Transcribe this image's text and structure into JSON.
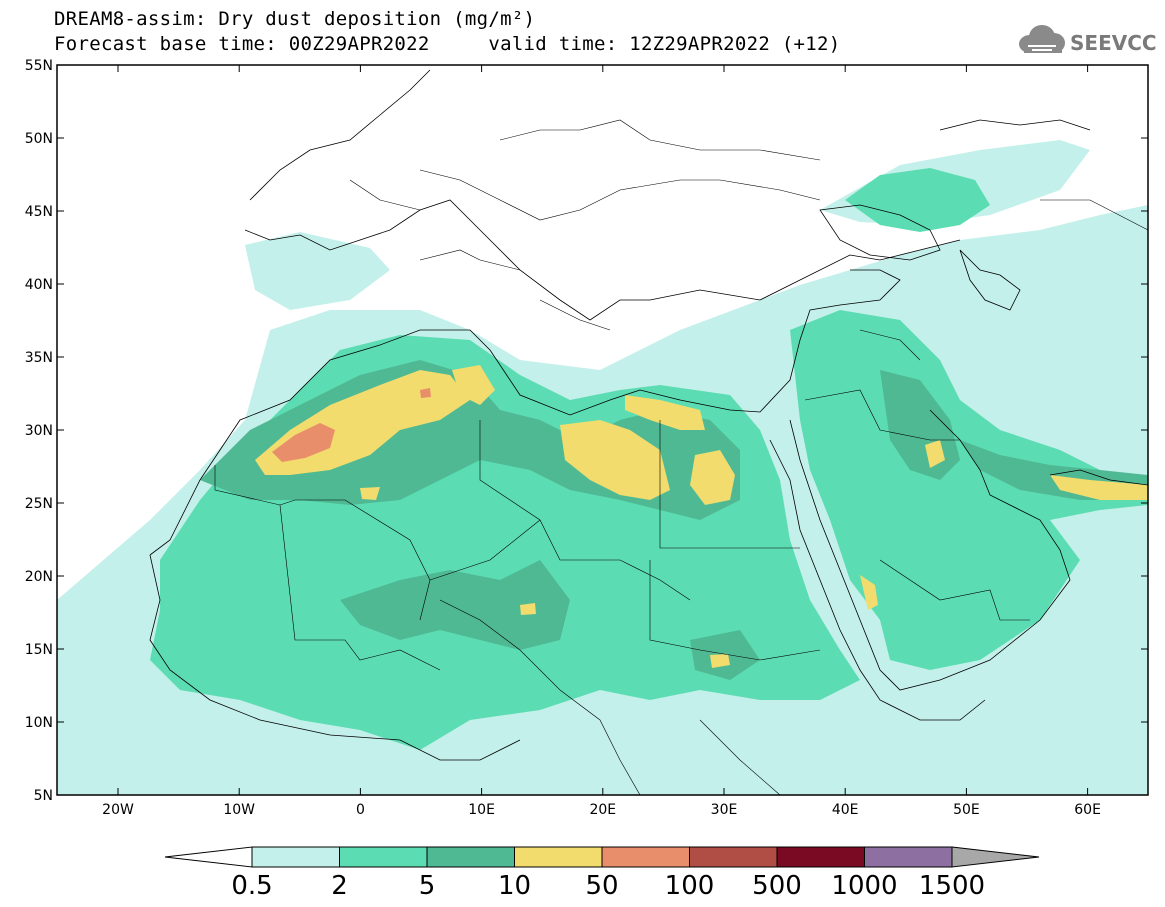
{
  "header": {
    "title_line1": "DREAM8-assim: Dry dust deposition (mg/m²)",
    "title_line2": "Forecast base time: 00Z29APR2022     valid time: 12Z29APR2022 (+12)",
    "logo_text": "SEEVCCC"
  },
  "map": {
    "lat_labels": [
      "55N",
      "50N",
      "45N",
      "40N",
      "35N",
      "30N",
      "25N",
      "20N",
      "15N",
      "10N",
      "5N"
    ],
    "lon_labels": [
      "20W",
      "10W",
      "0",
      "10E",
      "20E",
      "30E",
      "40E",
      "50E",
      "60E"
    ],
    "colors": {
      "level1": "#c3f0ea",
      "level2": "#5cdcb2",
      "level3": "#4fb994",
      "level4": "#f1dc6d",
      "level5": "#e88e6a",
      "level6": "#b04d44",
      "level7": "#7a0a24",
      "level8": "#8e6fa2",
      "level9": "#a8a8a8"
    }
  },
  "colorbar": {
    "labels": [
      "0.5",
      "2",
      "5",
      "10",
      "50",
      "100",
      "500",
      "1000",
      "1500"
    ],
    "colors": [
      "#c3f0ea",
      "#5cdcb2",
      "#4fb994",
      "#f1dc6d",
      "#e88e6a",
      "#b04d44",
      "#7a0a24",
      "#8e6fa2",
      "#a8a8a8"
    ]
  }
}
